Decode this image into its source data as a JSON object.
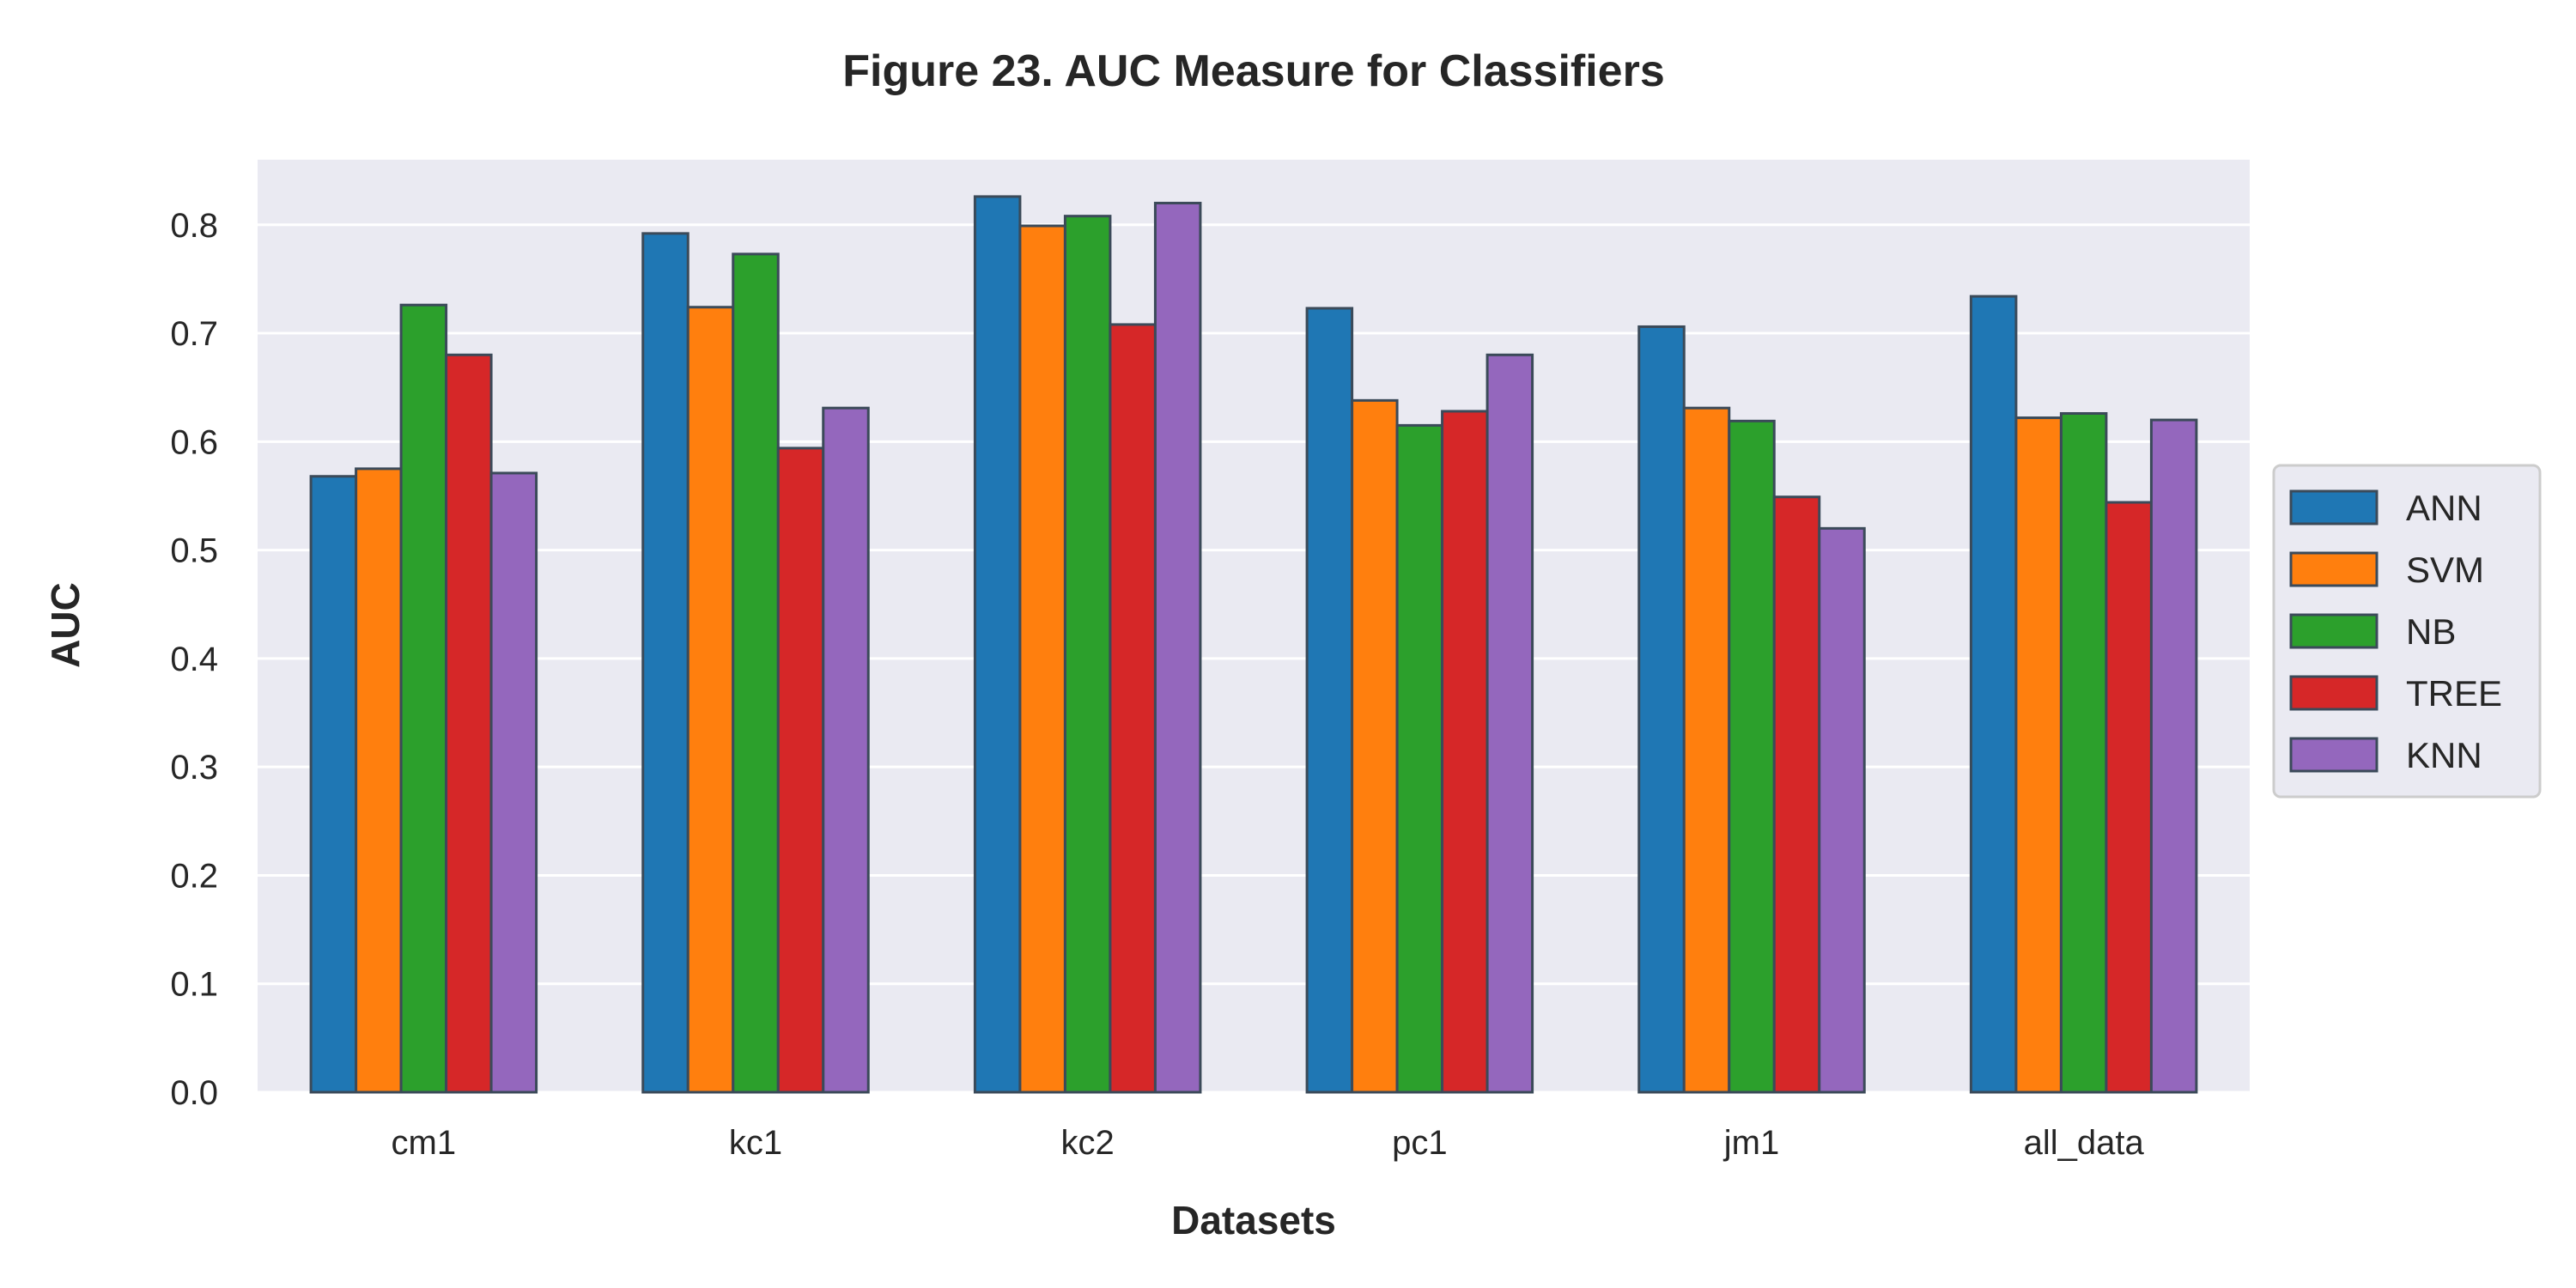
{
  "chart_data": {
    "type": "bar",
    "title": "Figure 23.  AUC Measure for Classifiers",
    "xlabel": "Datasets",
    "ylabel": "AUC",
    "categories": [
      "cm1",
      "kc1",
      "kc2",
      "pc1",
      "jm1",
      "all_data"
    ],
    "ylim": [
      0,
      0.86
    ],
    "yticks": [
      "0.0",
      "0.1",
      "0.2",
      "0.3",
      "0.4",
      "0.5",
      "0.6",
      "0.7",
      "0.8"
    ],
    "grid": true,
    "legend_position": "right",
    "series": [
      {
        "name": "ANN",
        "color": "#1f77b4",
        "values": [
          0.568,
          0.792,
          0.826,
          0.723,
          0.706,
          0.734
        ]
      },
      {
        "name": "SVM",
        "color": "#ff7f0e",
        "values": [
          0.575,
          0.724,
          0.799,
          0.638,
          0.631,
          0.622
        ]
      },
      {
        "name": "NB",
        "color": "#2ca02c",
        "values": [
          0.726,
          0.773,
          0.808,
          0.615,
          0.619,
          0.626
        ]
      },
      {
        "name": "TREE",
        "color": "#d62728",
        "values": [
          0.68,
          0.594,
          0.708,
          0.628,
          0.549,
          0.544
        ]
      },
      {
        "name": "KNN",
        "color": "#9467bd",
        "values": [
          0.571,
          0.631,
          0.82,
          0.68,
          0.52,
          0.62
        ]
      }
    ]
  },
  "colors": {
    "plot_background": "#eaeaf2",
    "grid": "#ffffff",
    "bar_edge": "#3b4a59",
    "text": "#262626"
  }
}
